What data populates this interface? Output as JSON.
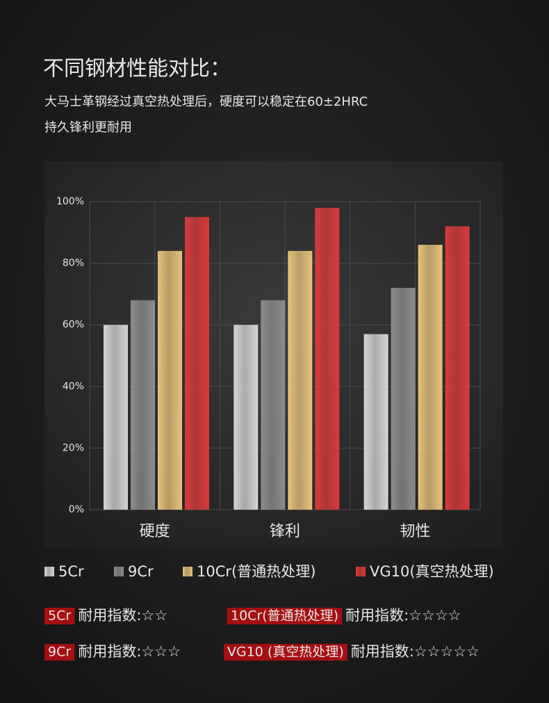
{
  "header": {
    "title": "不同钢材性能对比：",
    "subtitle_lines": [
      "大马士革钢经过真空热处理后，硬度可以稳定在60±2HRC",
      "持久锋利更耐用"
    ]
  },
  "chart_data": {
    "type": "bar",
    "categories": [
      "硬度",
      "锋利",
      "韧性"
    ],
    "series": [
      {
        "name": "5Cr",
        "color": "#d4d4d4",
        "values": [
          60,
          60,
          57
        ]
      },
      {
        "name": "9Cr",
        "color": "#8c8c8c",
        "values": [
          68,
          68,
          72
        ]
      },
      {
        "name": "10Cr(普通热处理)",
        "color": "#e6c27a",
        "values": [
          84,
          84,
          86
        ]
      },
      {
        "name": "VG10(真空热处理)",
        "color": "#d93a3c",
        "values": [
          95,
          98,
          92
        ]
      }
    ],
    "ylim": [
      0,
      100
    ],
    "yticks": [
      {
        "value": 0,
        "label": "0%"
      },
      {
        "value": 20,
        "label": "20%"
      },
      {
        "value": 40,
        "label": "40%"
      },
      {
        "value": 60,
        "label": "60%"
      },
      {
        "value": 80,
        "label": "80%"
      },
      {
        "value": 100,
        "label": "100%"
      }
    ],
    "grid": true
  },
  "ratings": [
    {
      "label": "5Cr",
      "text": "耐用指数:☆☆"
    },
    {
      "label": "10Cr(普通热处理)",
      "text": "耐用指数:☆☆☆☆"
    },
    {
      "label": "9Cr",
      "text": "耐用指数:☆☆☆"
    },
    {
      "label": "VG10 (真空热处理)",
      "text": "耐用指数:☆☆☆☆☆"
    }
  ]
}
